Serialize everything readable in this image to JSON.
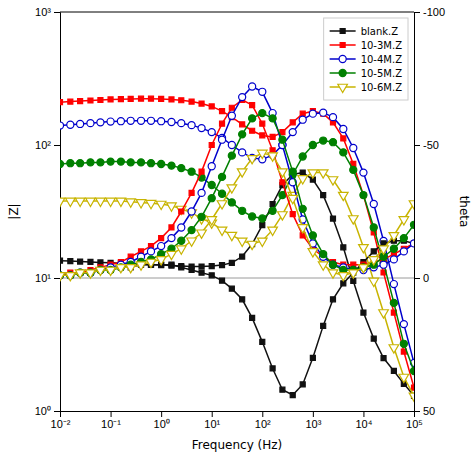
{
  "chart_data": {
    "type": "line",
    "xlabel": "Frequency (Hz)",
    "ylabel": "|Z|",
    "y2label": "theta",
    "log": true,
    "grid": false,
    "legend": "upper right",
    "xlim": [
      0.01,
      100000
    ],
    "xticks": [
      {
        "value": 0.01,
        "label": "10⁻²"
      },
      {
        "value": 0.1,
        "label": "10⁻¹"
      },
      {
        "value": 1,
        "label": "10⁰"
      },
      {
        "value": 10,
        "label": "10¹"
      },
      {
        "value": 100,
        "label": "10²"
      },
      {
        "value": 1000,
        "label": "10³"
      },
      {
        "value": 10000,
        "label": "10⁴"
      },
      {
        "value": 100000,
        "label": "10⁵"
      }
    ],
    "ylim": [
      1,
      1000
    ],
    "yticks": [
      {
        "value": 1,
        "label": "10⁰"
      },
      {
        "value": 10,
        "label": "10¹"
      },
      {
        "value": 100,
        "label": "10²"
      },
      {
        "value": 1000,
        "label": "10³"
      }
    ],
    "y2lim": [
      50,
      -100
    ],
    "y2ticks": [
      -100,
      -50,
      0,
      50
    ],
    "hlines": [
      10
    ],
    "x": [
      0.01,
      0.016,
      0.025,
      0.04,
      0.063,
      0.1,
      0.16,
      0.25,
      0.4,
      0.63,
      1.0,
      1.6,
      2.5,
      4.0,
      6.3,
      10,
      16,
      25,
      40,
      63,
      100,
      160,
      250,
      400,
      630,
      1000,
      1600,
      2500,
      4000,
      6300,
      10000,
      16000,
      25000,
      40000,
      63000,
      100000
    ],
    "series": [
      {
        "name": "blank.Z",
        "color": "#111111",
        "marker": "square",
        "values": [
          13.5,
          13.4,
          13.3,
          13.2,
          13.1,
          13.0,
          12.9,
          12.8,
          12.7,
          12.6,
          12.5,
          12.4,
          12.3,
          12.2,
          12.2,
          12.3,
          12.5,
          13.0,
          14.5,
          18,
          25,
          36,
          50,
          60,
          62,
          55,
          42,
          28,
          17,
          9.5,
          5.5,
          3.5,
          2.5,
          2.0,
          1.6,
          1.3
        ]
      },
      {
        "name": "10-3M.Z",
        "color": "#ff0000",
        "marker": "square",
        "values": [
          210,
          212,
          214,
          216,
          218,
          220,
          221,
          222,
          223,
          223,
          222,
          220,
          217,
          212,
          205,
          195,
          180,
          162,
          143,
          128,
          118,
          115,
          125,
          148,
          172,
          180,
          172,
          148,
          112,
          72,
          42,
          22,
          11,
          5.5,
          2.8,
          1.5
        ]
      },
      {
        "name": "10-4M.Z",
        "color": "#0000cc",
        "marker": "circle-open",
        "values": [
          140,
          142,
          144,
          146,
          148,
          150,
          151,
          152,
          152,
          152,
          151,
          149,
          146,
          141,
          134,
          125,
          113,
          100,
          88,
          80,
          78,
          84,
          100,
          125,
          155,
          172,
          175,
          162,
          132,
          95,
          62,
          36,
          19,
          9,
          4.5,
          2.3
        ]
      },
      {
        "name": "10-5M.Z",
        "color": "#008000",
        "marker": "circle",
        "values": [
          72,
          73,
          73,
          74,
          74,
          75,
          75,
          74,
          74,
          73,
          72,
          70,
          67,
          63,
          57,
          50,
          43,
          37,
          32,
          29,
          28,
          32,
          42,
          60,
          82,
          100,
          108,
          105,
          88,
          65,
          42,
          24,
          13,
          6.5,
          3.2,
          2.0
        ]
      },
      {
        "name": "10-6M.Z",
        "color": "#c8b400",
        "marker": "triangle-down-open",
        "values": [
          38,
          38,
          38,
          38,
          38,
          38,
          38,
          37.5,
          37,
          36.5,
          36,
          35,
          33,
          31,
          28,
          26,
          23,
          21,
          19,
          18,
          19,
          23,
          30,
          42,
          56,
          62,
          62,
          55,
          42,
          28,
          17,
          9.5,
          5.5,
          3.0,
          1.8,
          1.3
        ]
      },
      {
        "axis": "y2",
        "color": "#111111",
        "marker": "square",
        "values": [
          -1,
          -1,
          -2,
          -2,
          -3,
          -3,
          -4,
          -4,
          -5,
          -5,
          -5,
          -5,
          -4,
          -3,
          -2,
          -1,
          1,
          4,
          8,
          15,
          24,
          34,
          42,
          44,
          40,
          30,
          18,
          8,
          2,
          -2,
          -6,
          -10,
          -13,
          -14,
          -14,
          -13
        ]
      },
      {
        "axis": "y2",
        "color": "#ff0000",
        "marker": "square",
        "values": [
          -1,
          -2,
          -2,
          -3,
          -4,
          -5,
          -6,
          -8,
          -10,
          -12,
          -15,
          -19,
          -25,
          -32,
          -40,
          -50,
          -58,
          -64,
          -67,
          -65,
          -58,
          -48,
          -36,
          -24,
          -16,
          -11,
          -8,
          -6,
          -5,
          -5,
          -5,
          -6,
          -7,
          -9,
          -11,
          -13
        ]
      },
      {
        "axis": "y2",
        "color": "#0000cc",
        "marker": "circle-open",
        "values": [
          -1,
          -1,
          -2,
          -2,
          -3,
          -4,
          -5,
          -6,
          -8,
          -10,
          -12,
          -15,
          -19,
          -25,
          -32,
          -42,
          -52,
          -61,
          -68,
          -72,
          -70,
          -62,
          -50,
          -36,
          -22,
          -13,
          -8,
          -5,
          -4,
          -3,
          -3,
          -4,
          -5,
          -7,
          -10,
          -13
        ]
      },
      {
        "axis": "y2",
        "color": "#008000",
        "marker": "circle",
        "values": [
          -1,
          -1,
          -2,
          -2,
          -3,
          -3,
          -4,
          -5,
          -6,
          -7,
          -9,
          -11,
          -14,
          -18,
          -23,
          -30,
          -38,
          -46,
          -54,
          -60,
          -62,
          -60,
          -52,
          -40,
          -26,
          -16,
          -9,
          -5,
          -3,
          -3,
          -4,
          -5,
          -8,
          -11,
          -15,
          -20
        ]
      },
      {
        "axis": "y2",
        "color": "#c8b400",
        "marker": "triangle-down-open",
        "values": [
          -1,
          -1,
          -2,
          -2,
          -3,
          -3,
          -4,
          -4,
          -5,
          -6,
          -7,
          -9,
          -11,
          -14,
          -17,
          -22,
          -28,
          -34,
          -40,
          -45,
          -47,
          -46,
          -40,
          -30,
          -19,
          -10,
          -5,
          -2,
          -1,
          -2,
          -4,
          -7,
          -11,
          -16,
          -22,
          -28
        ]
      }
    ]
  }
}
